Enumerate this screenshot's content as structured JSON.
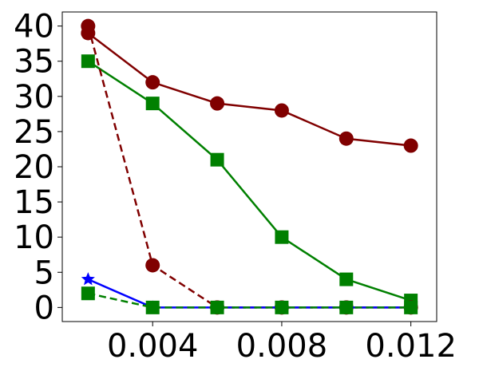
{
  "chart_data": {
    "type": "line",
    "title": "",
    "xlabel": "",
    "ylabel": "",
    "xlim": [
      0.0012,
      0.0128
    ],
    "ylim": [
      -2,
      42
    ],
    "xticks": [
      0.004,
      0.008,
      0.012
    ],
    "xtick_labels": [
      "0.004",
      "0.008",
      "0.012"
    ],
    "yticks": [
      0,
      5,
      10,
      15,
      20,
      25,
      30,
      35,
      40
    ],
    "ytick_labels": [
      "0",
      "5",
      "10",
      "15",
      "20",
      "25",
      "30",
      "35",
      "40"
    ],
    "grid": false,
    "legend": "none",
    "series": [
      {
        "color": "#800000",
        "line": "solid",
        "marker": "circle",
        "x": [
          0.002,
          0.004,
          0.006,
          0.008,
          0.01,
          0.012
        ],
        "y": [
          39,
          32,
          29,
          28,
          24,
          23
        ]
      },
      {
        "color": "#008000",
        "line": "solid",
        "marker": "square",
        "x": [
          0.002,
          0.004,
          0.006,
          0.008,
          0.01,
          0.012
        ],
        "y": [
          35,
          29,
          21,
          10,
          4,
          1
        ]
      },
      {
        "color": "#800000",
        "line": "dashed",
        "marker": "circle",
        "x": [
          0.002,
          0.004,
          0.006,
          0.008,
          0.01,
          0.012
        ],
        "y": [
          40,
          6,
          0,
          0,
          0,
          0
        ]
      },
      {
        "color": "#0000ff",
        "line": "solid",
        "marker": "star",
        "x": [
          0.002,
          0.004,
          0.006,
          0.008,
          0.01,
          0.012
        ],
        "y": [
          4,
          0,
          0,
          0,
          0,
          0
        ]
      },
      {
        "color": "#008000",
        "line": "dashed",
        "marker": "square",
        "x": [
          0.002,
          0.004,
          0.006,
          0.008,
          0.01,
          0.012
        ],
        "y": [
          2,
          0,
          0,
          0,
          0,
          0
        ]
      }
    ]
  }
}
